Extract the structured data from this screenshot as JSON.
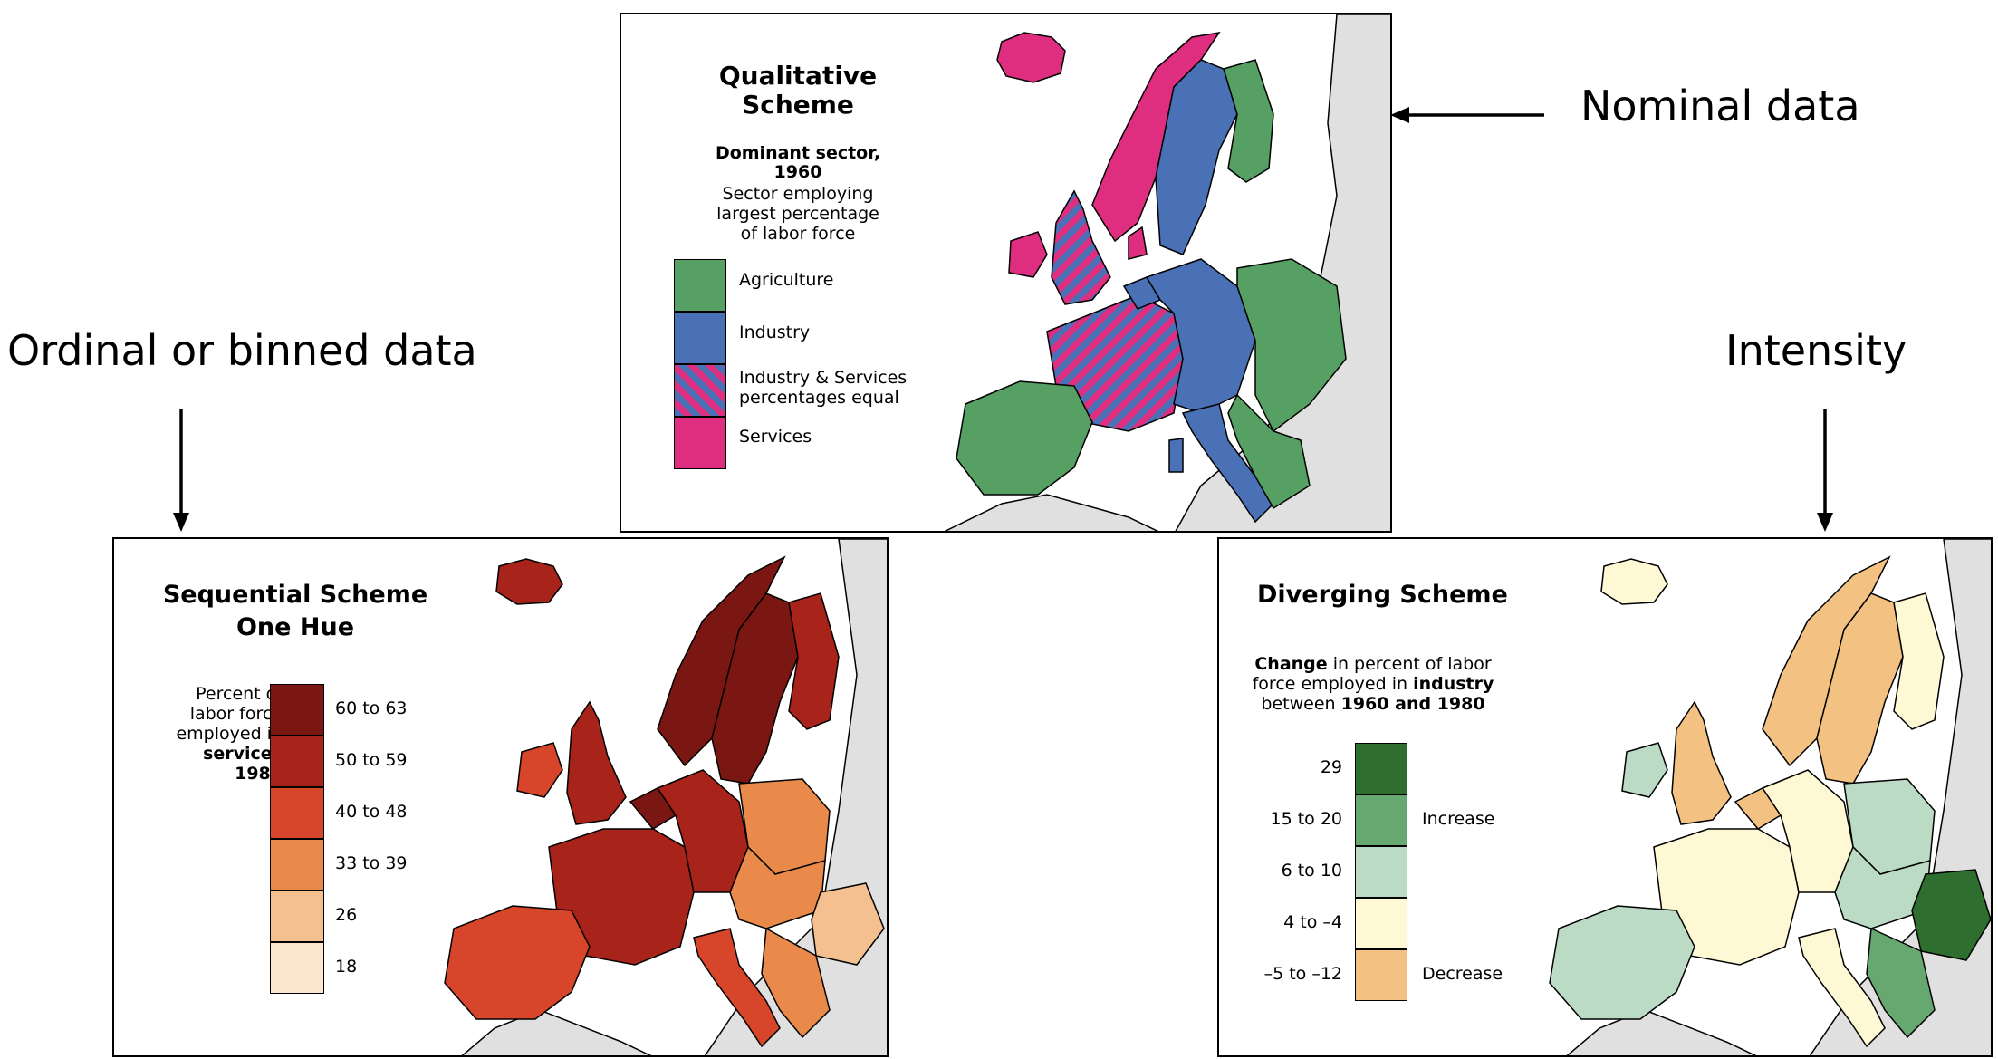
{
  "annotations": {
    "nominal": "Nominal data",
    "ordinal": "Ordinal or binned data",
    "intensity": "Intensity"
  },
  "qualitative": {
    "title_line1": "Qualitative",
    "title_line2": "Scheme",
    "subtitle_line1": "Dominant sector,",
    "subtitle_line2": "1960",
    "desc_line1": "Sector employing",
    "desc_line2": "largest percentage",
    "desc_line3": "of labor force",
    "legend": [
      {
        "label": "Agriculture",
        "color": "#55a062"
      },
      {
        "label": "Industry",
        "color": "#4a70b5"
      },
      {
        "label_line1": "Industry & Services",
        "label_line2": "percentages equal",
        "color": "hatch"
      },
      {
        "label": "Services",
        "color": "#df2e7f"
      }
    ]
  },
  "sequential": {
    "title_line1": "Sequential Scheme",
    "title_line2": "One Hue",
    "desc_line1": "Percent of",
    "desc_line2": "labor force",
    "desc_line3": "employed in",
    "desc_line4": "services",
    "desc_line5": "1980",
    "legend": [
      {
        "label": "60 to 63",
        "color": "#7a1712"
      },
      {
        "label": "50 to 59",
        "color": "#a8231a"
      },
      {
        "label": "40 to 48",
        "color": "#d7452a"
      },
      {
        "label": "33 to 39",
        "color": "#e98a4b"
      },
      {
        "label": "26",
        "color": "#f5c08f"
      },
      {
        "label": "18",
        "color": "#fce6cf"
      }
    ]
  },
  "diverging": {
    "title": "Diverging Scheme",
    "desc_bold1": "Change",
    "desc_line1_rest": " in percent of labor",
    "desc_line2_start": "force employed in ",
    "desc_bold2": "industry",
    "desc_line3_start": "between ",
    "desc_bold3": "1960 and 1980",
    "increase": "Increase",
    "decrease": "Decrease",
    "legend": [
      {
        "label": "29",
        "color": "#2e6e2e"
      },
      {
        "label": "15 to 20",
        "color": "#66a870"
      },
      {
        "label": "6 to 10",
        "color": "#bcdbc4"
      },
      {
        "label": "4 to –4",
        "color": "#fef9d4"
      },
      {
        "label": "–5 to –12",
        "color": "#f3c283"
      }
    ]
  },
  "colors": {
    "sea": "#ffffff",
    "land_outside": "#e0e0e0"
  }
}
